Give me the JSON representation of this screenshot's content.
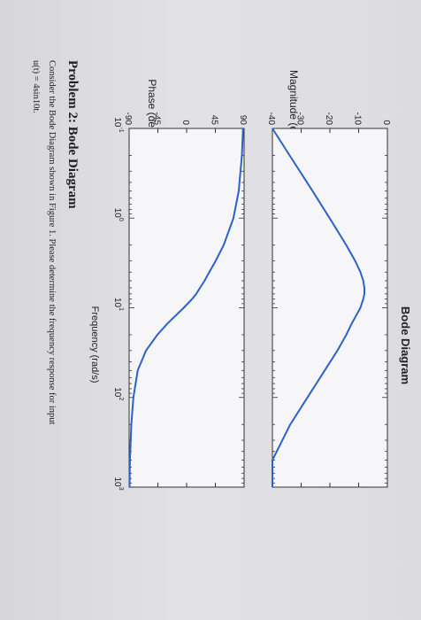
{
  "chart_data": {
    "type": "line",
    "title": "Bode Diagram",
    "xlabel": "Frequency (rad/s)",
    "xscale": "log",
    "xlim": [
      0.1,
      1000
    ],
    "x_tick_labels": [
      {
        "base": "10",
        "exp": "-1"
      },
      {
        "base": "10",
        "exp": "0"
      },
      {
        "base": "10",
        "exp": "1"
      },
      {
        "base": "10",
        "exp": "2"
      },
      {
        "base": "10",
        "exp": "3"
      }
    ],
    "grid": false,
    "subplots": [
      {
        "name": "magnitude",
        "ylabel": "Magnitude (dB)",
        "ylim": [
          -40,
          0
        ],
        "y_tick_labels": [
          "0",
          "-10",
          "-20",
          "-30",
          "-40"
        ],
        "color": "#2b62c8",
        "x": [
          0.1,
          0.2,
          0.5,
          1,
          2,
          3,
          4,
          5,
          6,
          7,
          8,
          10,
          15,
          20,
          30,
          50,
          100,
          200,
          500,
          1000
        ],
        "y": [
          -40,
          -34,
          -26,
          -20.1,
          -14.3,
          -11.2,
          -9.4,
          -8.4,
          -8.0,
          -8.0,
          -8.4,
          -9.4,
          -12.4,
          -14.3,
          -17.4,
          -21.8,
          -27.8,
          -33.8,
          -41.8,
          -47.8
        ]
      },
      {
        "name": "phase",
        "ylabel": "Phase (deg)",
        "ylim": [
          -90,
          90
        ],
        "y_tick_labels": [
          "90",
          "45",
          "0",
          "-45",
          "-90"
        ],
        "color": "#2b62c8",
        "x": [
          0.1,
          0.2,
          0.5,
          1,
          2,
          3,
          4,
          5,
          6,
          7,
          8,
          10,
          15,
          20,
          30,
          50,
          100,
          200,
          500,
          1000
        ],
        "y": [
          88.3,
          86.6,
          81.5,
          73.3,
          58.0,
          45.4,
          35.5,
          28.1,
          20.9,
          15.1,
          8.5,
          -4.5,
          -30.1,
          -45.8,
          -63.6,
          -76.6,
          -83.3,
          -86.6,
          -88.7,
          -89.3
        ]
      }
    ]
  },
  "problem": {
    "heading": "Problem 2: Bode Diagram",
    "line1": "Consider the Bode Diagram shown in Figure 1. Please determine the frequency response for input",
    "line2": "u(t) = 4sin10t."
  },
  "colors": {
    "curve": "#2b62c8",
    "axes": "#333333",
    "plot_bg": "#f6f6f8"
  }
}
